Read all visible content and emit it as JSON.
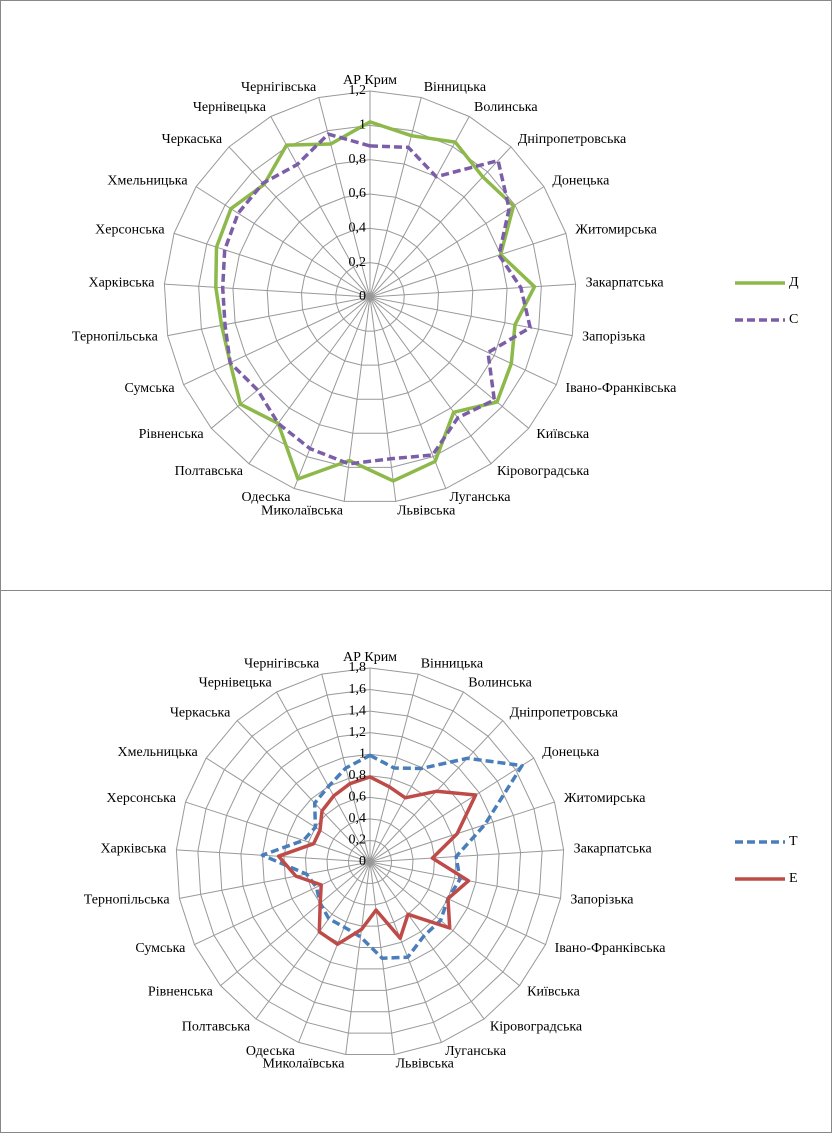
{
  "chart_data": [
    {
      "type": "radar",
      "categories": [
        "АР Крим",
        "Вінницька",
        "Волинська",
        "Дніпропетровська",
        "Донецька",
        "Житомирська",
        "Закарпатська",
        "Запорізька",
        "Івано-Франківська",
        "Київська",
        "Кіровоградська",
        "Луганська",
        "Львівська",
        "Миколаївська",
        "Одеська",
        "Полтавська",
        "Рівненська",
        "Сумська",
        "Тернопільська",
        "Харківська",
        "Херсонська",
        "Хмельницька",
        "Черкаська",
        "Чернівецька",
        "Чернігівська"
      ],
      "series": [
        {
          "name": "Д",
          "color": "#8db84a",
          "line_style": "solid",
          "values": [
            1.02,
            0.97,
            1.03,
            0.96,
            0.99,
            0.8,
            0.96,
            0.86,
            0.91,
            0.96,
            0.83,
            1.03,
            1.08,
            0.96,
            1.14,
            0.91,
            0.98,
            0.9,
            0.88,
            0.9,
            0.94,
            0.96,
            0.9,
            1.01,
            0.92
          ]
        },
        {
          "name": "С",
          "color": "#7b5ea7",
          "line_style": "dashed",
          "values": [
            0.88,
            0.9,
            0.8,
            1.09,
            0.96,
            0.79,
            0.88,
            0.95,
            0.76,
            0.94,
            0.87,
            0.99,
            0.95,
            0.98,
            0.95,
            0.91,
            0.85,
            0.9,
            0.86,
            0.86,
            0.89,
            0.91,
            0.91,
            0.88,
            0.98
          ]
        }
      ],
      "ylim": [
        0,
        1.2
      ],
      "yticks": [
        0,
        {
          "value": 0.2,
          "label": "0,2"
        },
        {
          "value": 0.4,
          "label": "0,4"
        },
        {
          "value": 0.6,
          "label": "0,6"
        },
        {
          "value": 0.8,
          "label": "0,8"
        },
        1,
        {
          "value": 1.2,
          "label": "1,2"
        }
      ],
      "grid": true,
      "legend": "right"
    },
    {
      "type": "radar",
      "categories": [
        "АР Крим",
        "Вінницька",
        "Волинська",
        "Дніпропетровська",
        "Донецька",
        "Житомирська",
        "Закарпатська",
        "Запорізька",
        "Івано-Франківська",
        "Київська",
        "Кіровоградська",
        "Луганська",
        "Львівська",
        "Миколаївська",
        "Одеська",
        "Полтавська",
        "Рівненська",
        "Сумська",
        "Тернопільська",
        "Харківська",
        "Херсонська",
        "Хмельницька",
        "Черкаська",
        "Чернівецька",
        "Чернігівська"
      ],
      "series": [
        {
          "name": "Т",
          "color": "#4a7ebb",
          "line_style": "dashed",
          "values": [
            0.99,
            0.9,
            0.99,
            1.32,
            1.67,
            1.12,
            0.8,
            0.85,
            0.8,
            0.85,
            0.85,
            0.95,
            0.9,
            0.7,
            0.65,
            0.65,
            0.6,
            0.55,
            0.6,
            1.0,
            0.65,
            0.6,
            0.75,
            0.8,
            0.9
          ]
        },
        {
          "name": "Е",
          "color": "#be4b48",
          "line_style": "solid",
          "values": [
            0.79,
            0.72,
            0.68,
            0.9,
            1.16,
            0.85,
            0.58,
            0.93,
            0.8,
            0.96,
            0.6,
            0.76,
            0.45,
            0.63,
            0.82,
            0.8,
            0.6,
            0.5,
            0.7,
            0.85,
            0.55,
            0.55,
            0.65,
            0.7,
            0.75
          ]
        }
      ],
      "ylim": [
        0,
        1.8
      ],
      "yticks": [
        0,
        {
          "value": 0.2,
          "label": "0,2"
        },
        {
          "value": 0.4,
          "label": "0,4"
        },
        {
          "value": 0.6,
          "label": "0,6"
        },
        {
          "value": 0.8,
          "label": "0,8"
        },
        1,
        {
          "value": 1.2,
          "label": "1,2"
        },
        {
          "value": 1.4,
          "label": "1,4"
        },
        {
          "value": 1.6,
          "label": "1,6"
        },
        {
          "value": 1.8,
          "label": "1,8"
        }
      ],
      "grid": true,
      "legend": "right"
    }
  ]
}
